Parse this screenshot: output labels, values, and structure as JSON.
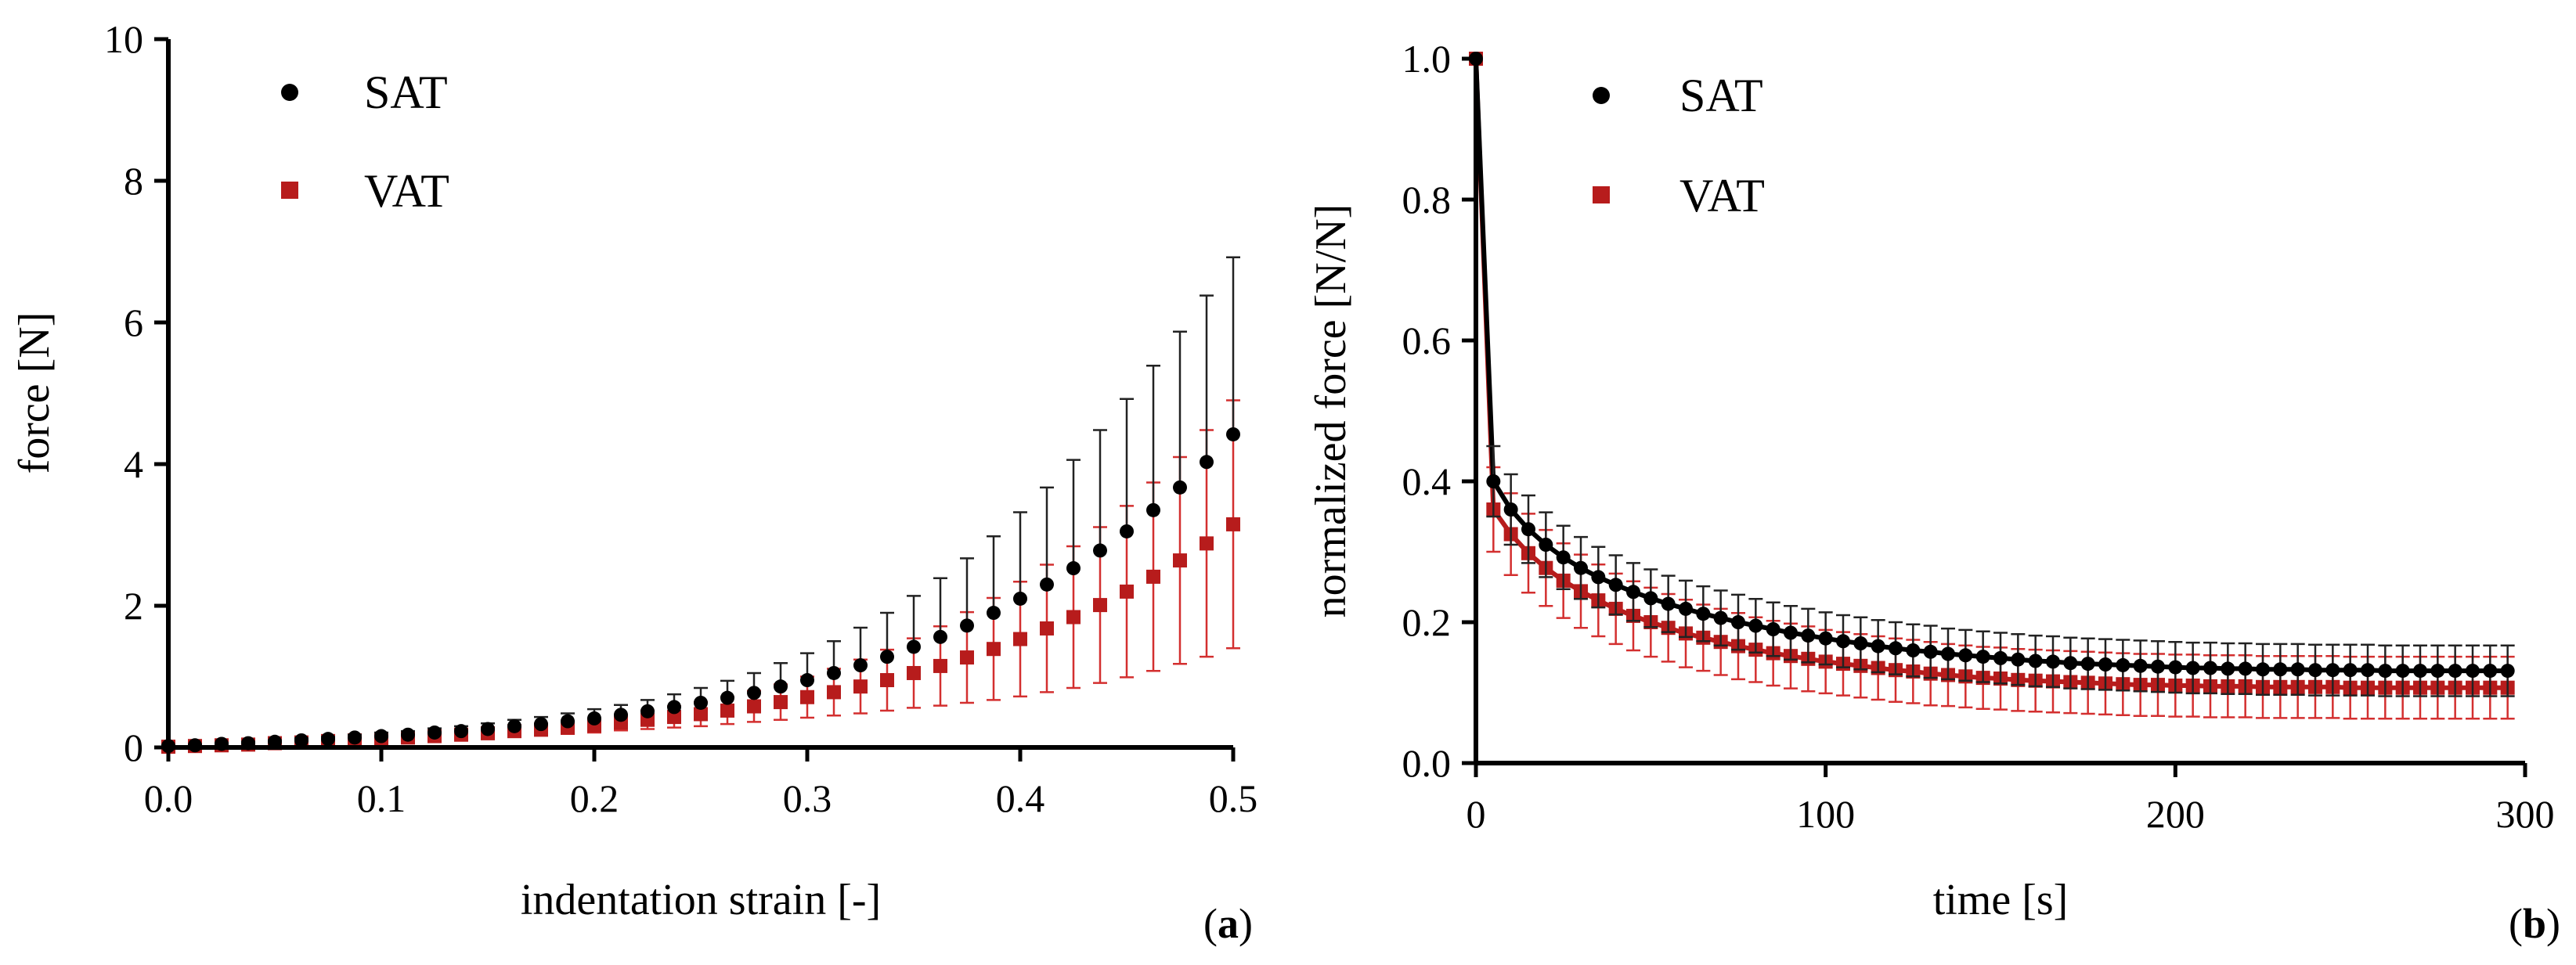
{
  "chart_data": [
    {
      "type": "scatter",
      "panel_label_open": "(",
      "panel_label_letter": "a",
      "panel_label_close": ")",
      "xlabel": "indentation strain [-]",
      "ylabel": "force [N]",
      "xlim": [
        0,
        0.5
      ],
      "ylim": [
        0,
        10
      ],
      "xticks": [
        0,
        0.1,
        0.2,
        0.3,
        0.4,
        0.5
      ],
      "xtick_labels": [
        "0.0",
        "0.1",
        "0.2",
        "0.3",
        "0.4",
        "0.5"
      ],
      "yticks": [
        0,
        2,
        4,
        6,
        8,
        10
      ],
      "ytick_labels": [
        "0",
        "2",
        "4",
        "6",
        "8",
        "10"
      ],
      "legend_position": "top-left",
      "series": [
        {
          "name": "SAT",
          "marker": "circle",
          "color": "#000000",
          "x": [
            0.0,
            0.0125,
            0.025,
            0.0375,
            0.05,
            0.0625,
            0.075,
            0.0875,
            0.1,
            0.1125,
            0.125,
            0.1375,
            0.15,
            0.1625,
            0.175,
            0.1875,
            0.2,
            0.2125,
            0.225,
            0.2375,
            0.25,
            0.2625,
            0.275,
            0.2875,
            0.3,
            0.3125,
            0.325,
            0.3375,
            0.35,
            0.3625,
            0.375,
            0.3875,
            0.4,
            0.4125,
            0.425,
            0.4375,
            0.45,
            0.4625,
            0.475,
            0.4875,
            0.5
          ],
          "y": [
            0.02,
            0.03,
            0.05,
            0.06,
            0.08,
            0.1,
            0.12,
            0.14,
            0.16,
            0.18,
            0.21,
            0.23,
            0.26,
            0.3,
            0.33,
            0.37,
            0.41,
            0.46,
            0.51,
            0.57,
            0.63,
            0.7,
            0.77,
            0.86,
            0.95,
            1.05,
            1.16,
            1.28,
            1.42,
            1.56,
            1.72,
            1.9,
            2.1,
            2.3,
            2.53,
            2.78,
            3.05,
            3.35,
            3.67,
            4.03,
            4.42
          ],
          "error_up": [
            0.01,
            0.01,
            0.01,
            0.02,
            0.02,
            0.03,
            0.03,
            0.04,
            0.05,
            0.05,
            0.06,
            0.07,
            0.08,
            0.09,
            0.1,
            0.11,
            0.13,
            0.14,
            0.16,
            0.18,
            0.21,
            0.24,
            0.28,
            0.33,
            0.38,
            0.45,
            0.53,
            0.62,
            0.72,
            0.83,
            0.95,
            1.08,
            1.22,
            1.37,
            1.53,
            1.7,
            1.87,
            2.04,
            2.2,
            2.35,
            2.5
          ]
        },
        {
          "name": "VAT",
          "marker": "square",
          "color": "#b71c1c",
          "x": [
            0.0,
            0.0125,
            0.025,
            0.0375,
            0.05,
            0.0625,
            0.075,
            0.0875,
            0.1,
            0.1125,
            0.125,
            0.1375,
            0.15,
            0.1625,
            0.175,
            0.1875,
            0.2,
            0.2125,
            0.225,
            0.2375,
            0.25,
            0.2625,
            0.275,
            0.2875,
            0.3,
            0.3125,
            0.325,
            0.3375,
            0.35,
            0.3625,
            0.375,
            0.3875,
            0.4,
            0.4125,
            0.425,
            0.4375,
            0.45,
            0.4625,
            0.475,
            0.4875,
            0.5
          ],
          "y": [
            0.01,
            0.02,
            0.03,
            0.04,
            0.06,
            0.07,
            0.09,
            0.1,
            0.12,
            0.14,
            0.16,
            0.18,
            0.2,
            0.23,
            0.25,
            0.28,
            0.31,
            0.35,
            0.39,
            0.43,
            0.47,
            0.52,
            0.58,
            0.64,
            0.71,
            0.78,
            0.86,
            0.95,
            1.05,
            1.15,
            1.27,
            1.39,
            1.53,
            1.68,
            1.84,
            2.01,
            2.2,
            2.41,
            2.64,
            2.88,
            3.15
          ],
          "error_up": [
            0.01,
            0.01,
            0.01,
            0.01,
            0.02,
            0.02,
            0.02,
            0.03,
            0.03,
            0.04,
            0.04,
            0.05,
            0.06,
            0.07,
            0.08,
            0.09,
            0.1,
            0.11,
            0.13,
            0.15,
            0.17,
            0.19,
            0.22,
            0.25,
            0.29,
            0.33,
            0.38,
            0.43,
            0.49,
            0.56,
            0.64,
            0.72,
            0.81,
            0.9,
            1.0,
            1.1,
            1.21,
            1.33,
            1.46,
            1.6,
            1.75
          ],
          "error_down": [
            0.01,
            0.01,
            0.01,
            0.01,
            0.02,
            0.02,
            0.02,
            0.03,
            0.03,
            0.04,
            0.04,
            0.05,
            0.06,
            0.07,
            0.08,
            0.09,
            0.1,
            0.11,
            0.13,
            0.15,
            0.17,
            0.19,
            0.22,
            0.25,
            0.29,
            0.33,
            0.38,
            0.43,
            0.49,
            0.56,
            0.64,
            0.72,
            0.81,
            0.9,
            1.0,
            1.1,
            1.21,
            1.33,
            1.46,
            1.6,
            1.75
          ]
        }
      ]
    },
    {
      "type": "line",
      "panel_label_open": "(",
      "panel_label_letter": "b",
      "panel_label_close": ")",
      "xlabel": "time [s]",
      "ylabel": "normalized force [N/N]",
      "xlim": [
        0,
        300
      ],
      "ylim": [
        0,
        1
      ],
      "xticks": [
        0,
        100,
        200,
        300
      ],
      "xtick_labels": [
        "0",
        "100",
        "200",
        "300"
      ],
      "yticks": [
        0,
        0.2,
        0.4,
        0.6,
        0.8,
        1.0
      ],
      "ytick_labels": [
        "0.0",
        "0.2",
        "0.4",
        "0.6",
        "0.8",
        "1.0"
      ],
      "legend_position": "top-left",
      "series": [
        {
          "name": "SAT",
          "marker": "circle",
          "color": "#000000",
          "x": [
            0,
            5,
            10,
            15,
            20,
            25,
            30,
            35,
            40,
            45,
            50,
            55,
            60,
            65,
            70,
            75,
            80,
            85,
            90,
            95,
            100,
            105,
            110,
            115,
            120,
            125,
            130,
            135,
            140,
            145,
            150,
            155,
            160,
            165,
            170,
            175,
            180,
            185,
            190,
            195,
            200,
            205,
            210,
            215,
            220,
            225,
            230,
            235,
            240,
            245,
            250,
            255,
            260,
            265,
            270,
            275,
            280,
            285,
            290,
            295
          ],
          "y": [
            1.0,
            0.4,
            0.36,
            0.332,
            0.31,
            0.292,
            0.277,
            0.264,
            0.253,
            0.243,
            0.234,
            0.226,
            0.219,
            0.212,
            0.206,
            0.2,
            0.195,
            0.19,
            0.185,
            0.181,
            0.177,
            0.173,
            0.17,
            0.166,
            0.163,
            0.16,
            0.158,
            0.155,
            0.153,
            0.151,
            0.149,
            0.147,
            0.145,
            0.144,
            0.142,
            0.141,
            0.14,
            0.139,
            0.138,
            0.137,
            0.136,
            0.135,
            0.135,
            0.134,
            0.134,
            0.133,
            0.133,
            0.133,
            0.132,
            0.132,
            0.132,
            0.132,
            0.131,
            0.131,
            0.131,
            0.131,
            0.131,
            0.131,
            0.131,
            0.131
          ],
          "error": [
            0.0,
            0.05,
            0.05,
            0.048,
            0.046,
            0.045,
            0.044,
            0.043,
            0.042,
            0.041,
            0.041,
            0.04,
            0.04,
            0.039,
            0.039,
            0.039,
            0.038,
            0.038,
            0.038,
            0.038,
            0.037,
            0.037,
            0.037,
            0.037,
            0.037,
            0.037,
            0.037,
            0.036,
            0.036,
            0.036,
            0.036,
            0.036,
            0.036,
            0.036,
            0.036,
            0.036,
            0.036,
            0.036,
            0.036,
            0.036,
            0.036,
            0.036,
            0.036,
            0.036,
            0.036,
            0.036,
            0.036,
            0.036,
            0.036,
            0.036,
            0.036,
            0.036,
            0.036,
            0.036,
            0.036,
            0.036,
            0.036,
            0.036,
            0.036,
            0.036
          ]
        },
        {
          "name": "VAT",
          "marker": "square",
          "color": "#b71c1c",
          "x": [
            0,
            5,
            10,
            15,
            20,
            25,
            30,
            35,
            40,
            45,
            50,
            55,
            60,
            65,
            70,
            75,
            80,
            85,
            90,
            95,
            100,
            105,
            110,
            115,
            120,
            125,
            130,
            135,
            140,
            145,
            150,
            155,
            160,
            165,
            170,
            175,
            180,
            185,
            190,
            195,
            200,
            205,
            210,
            215,
            220,
            225,
            230,
            235,
            240,
            245,
            250,
            255,
            260,
            265,
            270,
            275,
            280,
            285,
            290,
            295
          ],
          "y": [
            1.0,
            0.36,
            0.325,
            0.298,
            0.277,
            0.259,
            0.244,
            0.231,
            0.219,
            0.209,
            0.2,
            0.192,
            0.184,
            0.178,
            0.172,
            0.166,
            0.161,
            0.156,
            0.152,
            0.148,
            0.144,
            0.141,
            0.138,
            0.135,
            0.132,
            0.13,
            0.127,
            0.125,
            0.123,
            0.121,
            0.12,
            0.118,
            0.117,
            0.116,
            0.115,
            0.114,
            0.113,
            0.112,
            0.111,
            0.111,
            0.11,
            0.11,
            0.109,
            0.109,
            0.109,
            0.108,
            0.108,
            0.108,
            0.108,
            0.108,
            0.107,
            0.107,
            0.107,
            0.107,
            0.107,
            0.107,
            0.107,
            0.107,
            0.107,
            0.107
          ],
          "error": [
            0.0,
            0.06,
            0.058,
            0.056,
            0.054,
            0.053,
            0.052,
            0.051,
            0.05,
            0.049,
            0.049,
            0.048,
            0.048,
            0.047,
            0.047,
            0.047,
            0.046,
            0.046,
            0.046,
            0.046,
            0.045,
            0.045,
            0.045,
            0.045,
            0.045,
            0.045,
            0.045,
            0.044,
            0.044,
            0.044,
            0.044,
            0.044,
            0.044,
            0.044,
            0.044,
            0.044,
            0.044,
            0.044,
            0.044,
            0.044,
            0.044,
            0.044,
            0.044,
            0.044,
            0.044,
            0.044,
            0.044,
            0.044,
            0.044,
            0.044,
            0.044,
            0.044,
            0.044,
            0.044,
            0.044,
            0.044,
            0.044,
            0.044,
            0.044,
            0.044
          ]
        }
      ]
    }
  ]
}
